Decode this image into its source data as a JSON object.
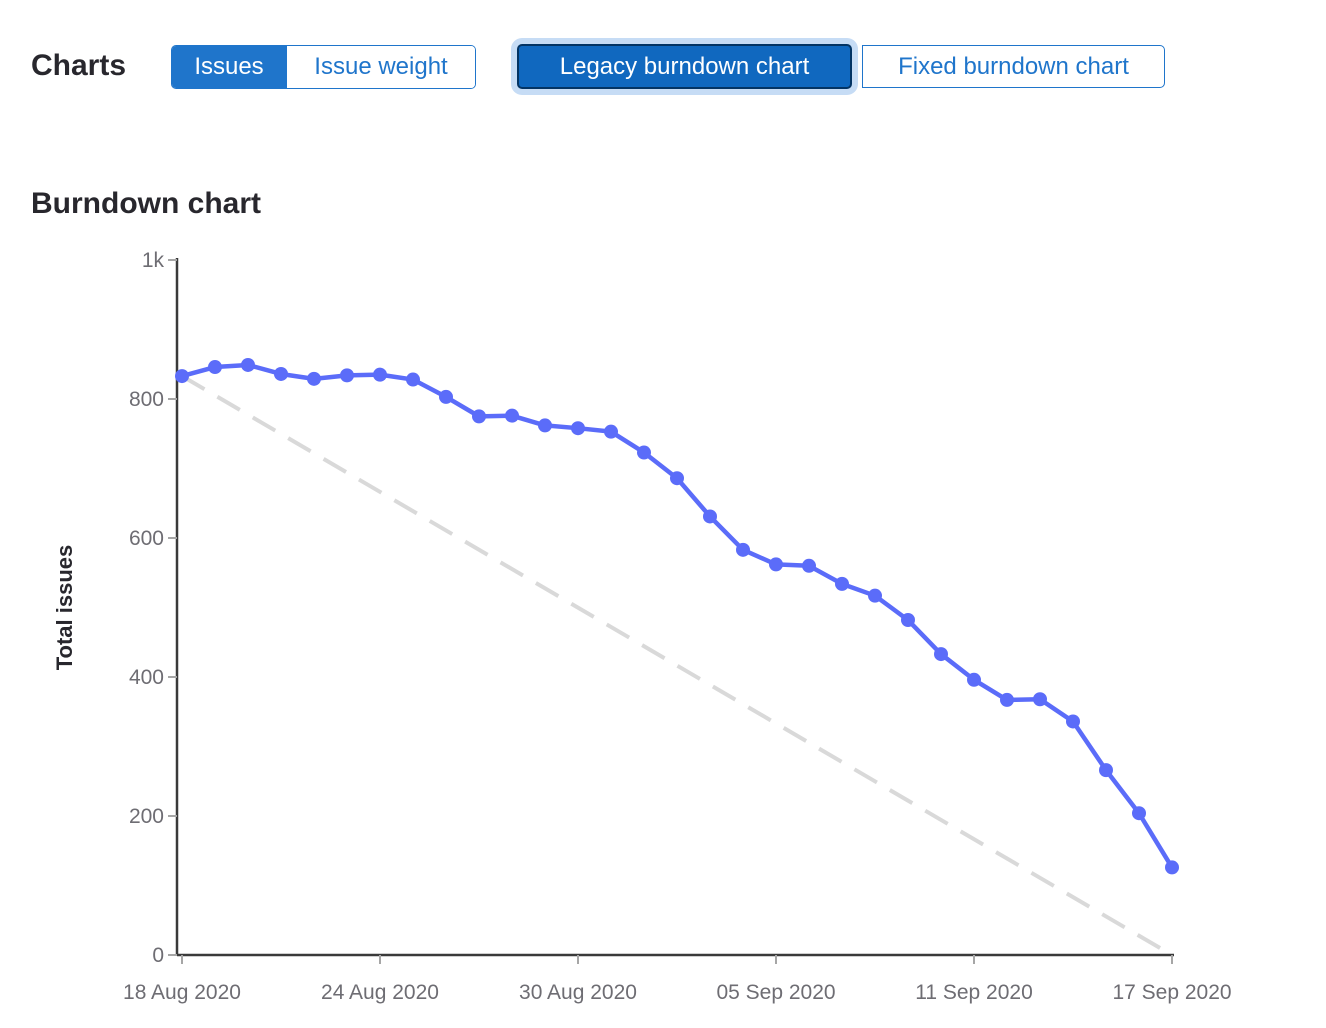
{
  "toolbar": {
    "charts_label": "Charts",
    "issue_toggle": {
      "options": [
        "Issues",
        "Issue weight"
      ],
      "selected": "Issues"
    },
    "burndown_toggle": {
      "options": [
        "Legacy burndown chart",
        "Fixed burndown chart"
      ],
      "selected": "Legacy burndown chart"
    }
  },
  "heading": "Burndown chart",
  "colors": {
    "accent_blue": "#1f75cb",
    "selected_button_bg": "#1068bf",
    "selected_button_border": "#033464",
    "focus_ring": "#c6dcf5",
    "series_line": "#5b6cf9",
    "guideline": "#d9d9d9",
    "axis": "#3a3a3a",
    "tick": "#a6a6a6",
    "tick_label": "#6e6d73",
    "heading": "#28272d"
  },
  "chart_data": {
    "type": "line",
    "title": "Burndown chart",
    "xlabel": "",
    "ylabel": "Total issues",
    "ylim": [
      0,
      1000
    ],
    "grid": false,
    "legend": "none",
    "categories": [
      "18 Aug 2020",
      "19 Aug 2020",
      "20 Aug 2020",
      "21 Aug 2020",
      "22 Aug 2020",
      "23 Aug 2020",
      "24 Aug 2020",
      "25 Aug 2020",
      "26 Aug 2020",
      "27 Aug 2020",
      "28 Aug 2020",
      "29 Aug 2020",
      "30 Aug 2020",
      "31 Aug 2020",
      "01 Sep 2020",
      "02 Sep 2020",
      "03 Sep 2020",
      "04 Sep 2020",
      "05 Sep 2020",
      "06 Sep 2020",
      "07 Sep 2020",
      "08 Sep 2020",
      "09 Sep 2020",
      "10 Sep 2020",
      "11 Sep 2020",
      "12 Sep 2020",
      "13 Sep 2020",
      "14 Sep 2020",
      "15 Sep 2020",
      "16 Sep 2020",
      "17 Sep 2020"
    ],
    "values": [
      833,
      846,
      849,
      836,
      829,
      834,
      835,
      828,
      803,
      775,
      776,
      762,
      758,
      753,
      723,
      686,
      631,
      583,
      562,
      560,
      534,
      517,
      482,
      433,
      396,
      367,
      368,
      336,
      266,
      204,
      126
    ],
    "guideline": {
      "start": 833,
      "end": 0,
      "style": "dashed"
    },
    "y_ticks": [
      {
        "value": 0,
        "label": "0"
      },
      {
        "value": 200,
        "label": "200"
      },
      {
        "value": 400,
        "label": "400"
      },
      {
        "value": 600,
        "label": "600"
      },
      {
        "value": 800,
        "label": "800"
      },
      {
        "value": 1000,
        "label": "1k"
      }
    ],
    "x_tick_indices": [
      0,
      6,
      12,
      18,
      24,
      30
    ]
  }
}
